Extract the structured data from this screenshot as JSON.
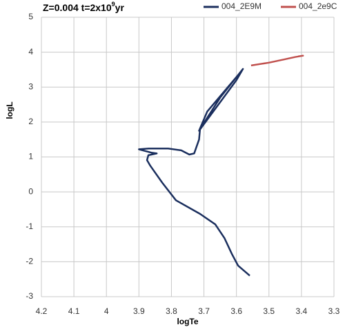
{
  "chart_data": {
    "type": "line",
    "title": "Z=0.004 t=2x10",
    "title_superscript": "9",
    "title_suffix": "yr",
    "xlabel": "logTe",
    "ylabel": "logL",
    "xlim": [
      4.2,
      3.3
    ],
    "ylim": [
      -3,
      5
    ],
    "xticks": [
      4.2,
      4.1,
      4,
      3.9,
      3.8,
      3.7,
      3.6,
      3.5,
      3.4,
      3.3
    ],
    "yticks": [
      -3,
      -2,
      -1,
      0,
      1,
      2,
      3,
      4,
      5
    ],
    "grid": true,
    "legend": "top-right",
    "series": [
      {
        "name": "004_2E9M",
        "color": "#1b2f5e",
        "x": [
          3.559,
          3.595,
          3.614,
          3.637,
          3.665,
          3.712,
          3.786,
          3.828,
          3.865,
          3.875,
          3.871,
          3.845,
          3.86,
          3.9,
          3.87,
          3.81,
          3.77,
          3.745,
          3.73,
          3.715,
          3.712,
          3.65,
          3.58,
          3.6,
          3.715,
          3.69,
          3.59
        ],
        "y": [
          -2.4,
          -2.11,
          -1.78,
          -1.32,
          -0.93,
          -0.63,
          -0.24,
          0.26,
          0.75,
          0.91,
          1.05,
          1.1,
          1.12,
          1.22,
          1.24,
          1.24,
          1.19,
          1.07,
          1.1,
          1.5,
          1.8,
          2.7,
          3.52,
          3.2,
          1.75,
          2.3,
          3.4
        ]
      },
      {
        "name": "004_2e9C",
        "color": "#c0504d",
        "x": [
          3.555,
          3.5,
          3.45,
          3.42,
          3.395,
          3.41
        ],
        "y": [
          3.62,
          3.7,
          3.8,
          3.86,
          3.9,
          3.88
        ]
      }
    ]
  }
}
